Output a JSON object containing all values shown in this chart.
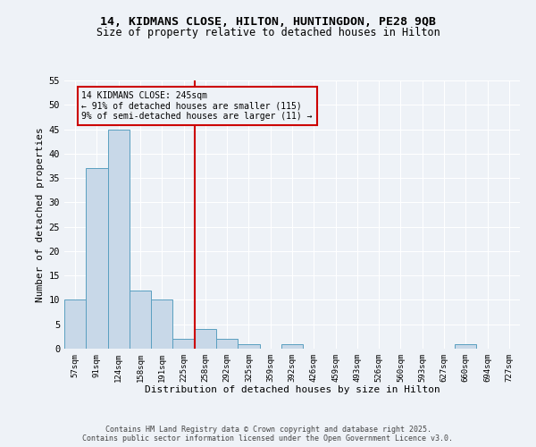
{
  "title_line1": "14, KIDMANS CLOSE, HILTON, HUNTINGDON, PE28 9QB",
  "title_line2": "Size of property relative to detached houses in Hilton",
  "xlabel": "Distribution of detached houses by size in Hilton",
  "ylabel": "Number of detached properties",
  "categories": [
    "57sqm",
    "91sqm",
    "124sqm",
    "158sqm",
    "191sqm",
    "225sqm",
    "258sqm",
    "292sqm",
    "325sqm",
    "359sqm",
    "392sqm",
    "426sqm",
    "459sqm",
    "493sqm",
    "526sqm",
    "560sqm",
    "593sqm",
    "627sqm",
    "660sqm",
    "694sqm",
    "727sqm"
  ],
  "values": [
    10,
    37,
    45,
    12,
    10,
    2,
    4,
    2,
    1,
    0,
    1,
    0,
    0,
    0,
    0,
    0,
    0,
    0,
    1,
    0,
    0
  ],
  "bar_color": "#c8d8e8",
  "bar_edge_color": "#5a9fc0",
  "background_color": "#eef2f7",
  "grid_color": "#ffffff",
  "red_line_x": 5.5,
  "annotation_text": "14 KIDMANS CLOSE: 245sqm\n← 91% of detached houses are smaller (115)\n9% of semi-detached houses are larger (11) →",
  "annotation_box_color": "#cc0000",
  "ylim": [
    0,
    55
  ],
  "yticks": [
    0,
    5,
    10,
    15,
    20,
    25,
    30,
    35,
    40,
    45,
    50,
    55
  ],
  "footer_line1": "Contains HM Land Registry data © Crown copyright and database right 2025.",
  "footer_line2": "Contains public sector information licensed under the Open Government Licence v3.0."
}
